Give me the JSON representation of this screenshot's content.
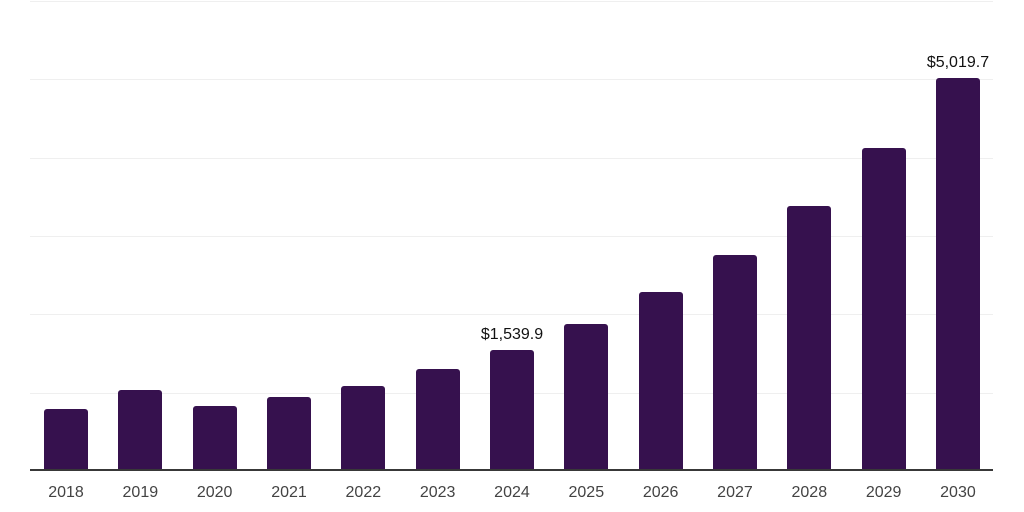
{
  "chart_data": {
    "type": "bar",
    "title": "",
    "xlabel": "",
    "ylabel": "",
    "categories": [
      "2018",
      "2019",
      "2020",
      "2021",
      "2022",
      "2023",
      "2024",
      "2025",
      "2026",
      "2027",
      "2028",
      "2029",
      "2030"
    ],
    "values": [
      790,
      1030,
      830,
      945,
      1090,
      1300,
      1539.9,
      1875,
      2280,
      2760,
      3380,
      4120,
      5019.7
    ],
    "data_labels": {
      "2024": "$1,539.9",
      "2030": "$5,019.7"
    },
    "ylim": [
      0,
      6000
    ],
    "gridline_step": 1000,
    "grid": true,
    "legend_position": "none",
    "y_tick_labels_visible": false,
    "colors": {
      "bar": "#36114E",
      "gridline": "#EFEFEF",
      "axis_line": "#383838",
      "tick_label": "#434343",
      "data_label": "#111111",
      "background": "#FFFFFF"
    }
  }
}
